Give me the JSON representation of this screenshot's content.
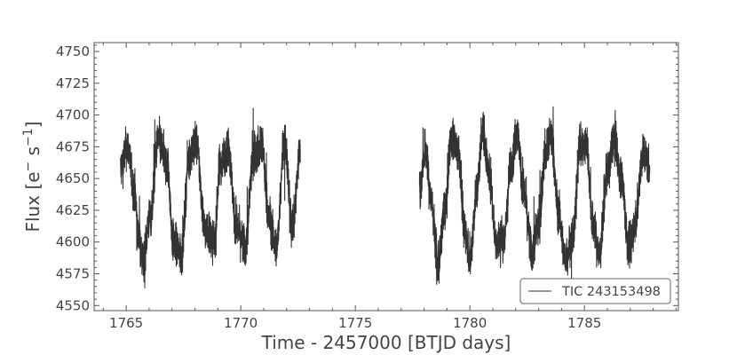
{
  "chart_data": {
    "type": "line",
    "title": "",
    "xlabel": "Time - 2457000 [BTJD days]",
    "ylabel_parts": {
      "base": "Flux [e",
      "sup1": "−",
      "mid": " s",
      "sup2": "−1",
      "end": "]"
    },
    "xlim": [
      1763.6,
      1789.1
    ],
    "ylim": [
      4546,
      4757
    ],
    "xticks": [
      1765,
      1770,
      1775,
      1780,
      1785
    ],
    "yticks": [
      4550,
      4575,
      4600,
      4625,
      4650,
      4675,
      4700,
      4725,
      4750
    ],
    "x_minor_step": 1,
    "y_minor_step": 5,
    "grid": false,
    "legend_position": "lower-right",
    "series": [
      {
        "name": "TIC 243153498",
        "color": "#333333",
        "segments": [
          {
            "x": [
              1764.75,
              1765.05,
              1765.35,
              1765.55,
              1765.7,
              1766.05,
              1766.4,
              1766.8,
              1767.05,
              1767.4,
              1767.75,
              1768.05,
              1768.45,
              1768.85,
              1769.1,
              1769.45,
              1769.8,
              1770.2,
              1770.55,
              1770.9,
              1771.25,
              1771.55,
              1771.9,
              1772.25,
              1772.6
            ],
            "y": [
              4658,
              4675,
              4640,
              4605,
              4585,
              4620,
              4680,
              4660,
              4600,
              4590,
              4668,
              4678,
              4610,
              4600,
              4662,
              4674,
              4612,
              4596,
              4668,
              4676,
              4618,
              4595,
              4680,
              4612,
              4672
            ]
          },
          {
            "x": [
              1777.8,
              1778.05,
              1778.3,
              1778.6,
              1778.9,
              1779.2,
              1779.5,
              1779.75,
              1780.0,
              1780.3,
              1780.55,
              1780.85,
              1781.15,
              1781.5,
              1781.8,
              1782.05,
              1782.35,
              1782.7,
              1783.0,
              1783.3,
              1783.55,
              1783.85,
              1784.15,
              1784.5,
              1784.8,
              1785.1,
              1785.35,
              1785.65,
              1786.0,
              1786.3,
              1786.6,
              1786.95,
              1787.2,
              1787.55,
              1787.85
            ],
            "y": [
              4640,
              4672,
              4634,
              4580,
              4625,
              4684,
              4672,
              4612,
              4588,
              4640,
              4688,
              4654,
              4600,
              4604,
              4662,
              4686,
              4640,
              4592,
              4614,
              4672,
              4682,
              4626,
              4588,
              4604,
              4676,
              4676,
              4614,
              4590,
              4654,
              4682,
              4652,
              4594,
              4614,
              4670,
              4660
            ]
          }
        ]
      }
    ]
  }
}
